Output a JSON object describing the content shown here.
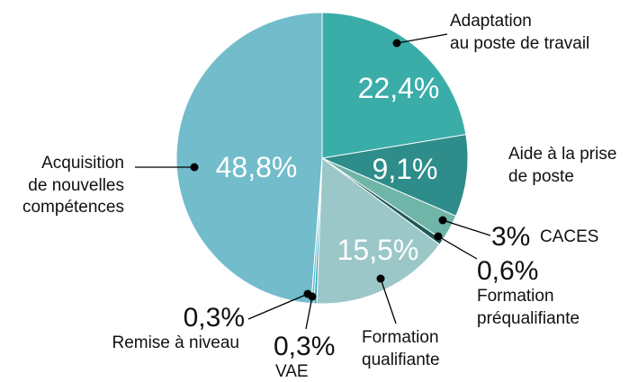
{
  "chart_data": {
    "type": "pie",
    "categories": [
      "Adaptation\nau poste de travail",
      "Aide à la prise\nde poste",
      "CACES",
      "Formation\npréqualifiante",
      "Formation\nqualifiante",
      "VAE",
      "Remise à niveau",
      "Acquisition\nde nouvelles\ncompétences"
    ],
    "values": [
      22.4,
      9.1,
      3,
      0.6,
      15.5,
      0.3,
      0.3,
      48.8
    ],
    "value_labels": [
      "22,4%",
      "9,1%",
      "3%",
      "0,6%",
      "15,5%",
      "0,3%",
      "0,3%",
      "48,8%"
    ],
    "colors": [
      "#3aada9",
      "#2e8c8a",
      "#6fb5a8",
      "#1f5a5a",
      "#9cc7c8",
      "#2aa0b8",
      "#5bc0d8",
      "#72bccb"
    ]
  }
}
